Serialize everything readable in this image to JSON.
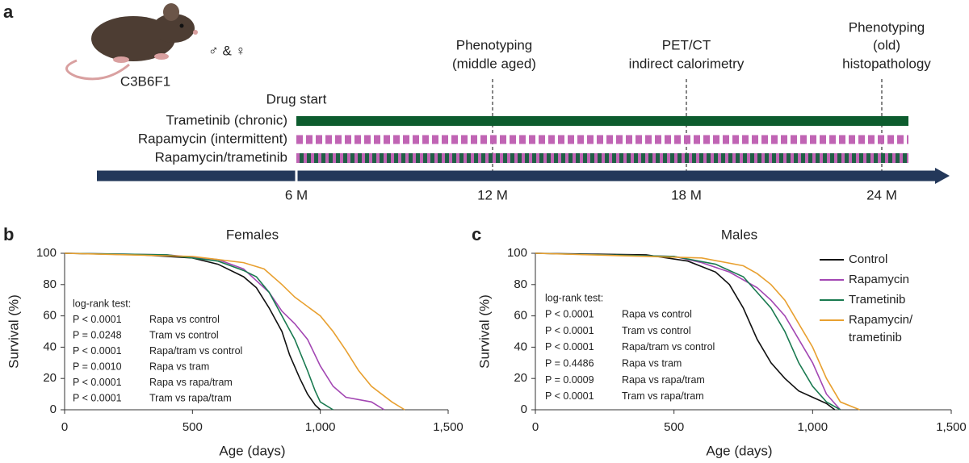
{
  "panel_a": {
    "label": "a",
    "strain": "C3B6F1",
    "sex": "♂ & ♀",
    "drug_start": "Drug start",
    "treatments": [
      "Trametinib (chronic)",
      "Rapamycin (intermittent)",
      "Rapamycin/trametinib"
    ],
    "timepoints": [
      "6 M",
      "12 M",
      "18 M",
      "24 M"
    ],
    "events": [
      {
        "lines": [
          "Phenotyping",
          "(middle aged)"
        ]
      },
      {
        "lines": [
          "PET/CT",
          "indirect calorimetry"
        ]
      },
      {
        "lines": [
          "Phenotyping",
          "(old)",
          "histopathology"
        ]
      }
    ]
  },
  "chart_data": [
    {
      "type": "line",
      "panel": "b",
      "title": "Females",
      "x_label": "Age (days)",
      "y_label": "Survival (%)",
      "xlim": [
        0,
        1500
      ],
      "ylim": [
        0,
        100
      ],
      "xticks": [
        0,
        500,
        {
          "value": 1000,
          "label": "1,000"
        },
        {
          "value": 1500,
          "label": "1,500"
        }
      ],
      "yticks": [
        0,
        20,
        40,
        60,
        80,
        100
      ],
      "annotation_title": "log-rank test:",
      "annotations": [
        {
          "stat": "P < 0.0001",
          "comparison": "Rapa vs control"
        },
        {
          "stat": "P = 0.0248",
          "comparison": "Tram vs control"
        },
        {
          "stat": "P < 0.0001",
          "comparison": "Rapa/tram vs control"
        },
        {
          "stat": "P = 0.0010",
          "comparison": "Rapa vs tram"
        },
        {
          "stat": "P < 0.0001",
          "comparison": "Rapa vs rapa/tram"
        },
        {
          "stat": "P < 0.0001",
          "comparison": "Tram vs rapa/tram"
        }
      ],
      "series": [
        {
          "name": "Control",
          "color": "#111111",
          "x": [
            0,
            300,
            500,
            600,
            700,
            750,
            800,
            850,
            880,
            920,
            950,
            980,
            1000
          ],
          "values": [
            100,
            99,
            97,
            93,
            85,
            78,
            65,
            50,
            35,
            20,
            10,
            3,
            0
          ]
        },
        {
          "name": "Rapamycin",
          "color": "#a347b3",
          "x": [
            0,
            400,
            600,
            700,
            800,
            850,
            900,
            950,
            1000,
            1050,
            1100,
            1200,
            1250
          ],
          "values": [
            100,
            99,
            96,
            90,
            75,
            63,
            55,
            45,
            28,
            15,
            8,
            5,
            0
          ]
        },
        {
          "name": "Trametinib",
          "color": "#1a7a50",
          "x": [
            0,
            400,
            600,
            700,
            750,
            800,
            850,
            900,
            950,
            980,
            1000,
            1050
          ],
          "values": [
            100,
            99,
            95,
            89,
            85,
            75,
            60,
            45,
            25,
            12,
            5,
            0
          ]
        },
        {
          "name": "Rapamycin/ trametinib",
          "color": "#e8a030",
          "x": [
            0,
            500,
            700,
            780,
            850,
            900,
            1000,
            1050,
            1100,
            1150,
            1200,
            1280,
            1330
          ],
          "values": [
            100,
            98,
            94,
            90,
            80,
            72,
            60,
            50,
            38,
            25,
            15,
            5,
            0
          ]
        }
      ]
    },
    {
      "type": "line",
      "panel": "c",
      "title": "Males",
      "x_label": "Age (days)",
      "y_label": "Survival (%)",
      "xlim": [
        0,
        1500
      ],
      "ylim": [
        0,
        100
      ],
      "xticks": [
        0,
        500,
        {
          "value": 1000,
          "label": "1,000"
        },
        {
          "value": 1500,
          "label": "1,500"
        }
      ],
      "yticks": [
        0,
        20,
        40,
        60,
        80,
        100
      ],
      "legend": "upper right",
      "annotation_title": "log-rank test:",
      "annotations": [
        {
          "stat": "P < 0.0001",
          "comparison": "Rapa vs control"
        },
        {
          "stat": "P < 0.0001",
          "comparison": "Tram vs control"
        },
        {
          "stat": "P < 0.0001",
          "comparison": "Rapa/tram vs control"
        },
        {
          "stat": "P = 0.4486",
          "comparison": "Rapa vs tram"
        },
        {
          "stat": "P = 0.0009",
          "comparison": "Rapa vs rapa/tram"
        },
        {
          "stat": "P < 0.0001",
          "comparison": "Tram vs rapa/tram"
        }
      ],
      "series": [
        {
          "name": "Control",
          "color": "#111111",
          "x": [
            0,
            400,
            550,
            650,
            700,
            750,
            800,
            850,
            900,
            950,
            1000,
            1050,
            1080
          ],
          "values": [
            100,
            99,
            95,
            88,
            80,
            65,
            45,
            30,
            20,
            12,
            8,
            4,
            0
          ]
        },
        {
          "name": "Rapamycin",
          "color": "#a347b3",
          "x": [
            0,
            500,
            600,
            700,
            800,
            850,
            900,
            950,
            1000,
            1050,
            1100
          ],
          "values": [
            100,
            98,
            94,
            88,
            78,
            70,
            60,
            45,
            30,
            10,
            0
          ]
        },
        {
          "name": "Trametinib",
          "color": "#1a7a50",
          "x": [
            0,
            500,
            650,
            750,
            800,
            850,
            900,
            950,
            1000,
            1050,
            1100
          ],
          "values": [
            100,
            98,
            93,
            85,
            75,
            65,
            50,
            30,
            15,
            5,
            0
          ]
        },
        {
          "name": "Rapamycin/ trametinib",
          "color": "#e8a030",
          "x": [
            0,
            600,
            750,
            800,
            850,
            900,
            950,
            1000,
            1050,
            1100,
            1170
          ],
          "values": [
            100,
            97,
            92,
            87,
            80,
            70,
            55,
            40,
            20,
            5,
            0
          ]
        }
      ]
    }
  ]
}
